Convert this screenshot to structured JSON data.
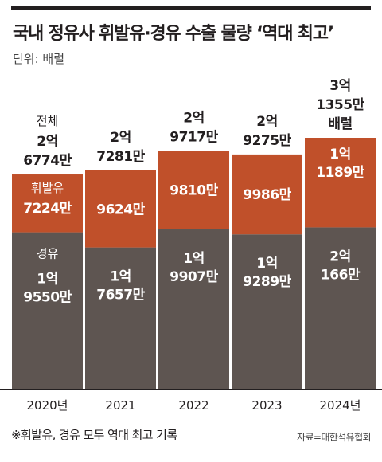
{
  "title": "국내 정유사 휘발유·경유 수출 물량 ‘역대 최고’",
  "unit": "단위: 배럴",
  "footnote": "※휘발유, 경유 모두 역대 최고 기록",
  "source": "자료=대한석유협회",
  "colors": {
    "diesel": "#5e5551",
    "gasoline": "#c0502a",
    "text": "#231f20",
    "background": "#ffffff"
  },
  "chart_data": {
    "type": "bar",
    "stacked": true,
    "unit": "배럴",
    "categories": [
      "2020년",
      "2021",
      "2022",
      "2023",
      "2024년"
    ],
    "series": [
      {
        "name": "경유",
        "values": [
          195500000,
          176570000,
          199070000,
          192890000,
          201660000
        ],
        "labels": [
          [
            "1억",
            "9550만"
          ],
          [
            "1억",
            "7657만"
          ],
          [
            "1억",
            "9907만"
          ],
          [
            "1억",
            "9289만"
          ],
          [
            "2억",
            "166만"
          ]
        ]
      },
      {
        "name": "휘발유",
        "values": [
          72240000,
          96240000,
          98100000,
          99860000,
          111890000
        ],
        "labels": [
          [
            "7224만"
          ],
          [
            "9624만"
          ],
          [
            "9810만"
          ],
          [
            "9986만"
          ],
          [
            "1억",
            "1189만"
          ]
        ]
      }
    ],
    "totals": {
      "name": "전체",
      "values": [
        267740000,
        272810000,
        297170000,
        292750000,
        313550000
      ],
      "labels": [
        [
          "2억",
          "6774만"
        ],
        [
          "2억",
          "7281만"
        ],
        [
          "2억",
          "9717만"
        ],
        [
          "2억",
          "9275만"
        ],
        [
          "3억",
          "1355만",
          "배럴"
        ]
      ]
    }
  }
}
